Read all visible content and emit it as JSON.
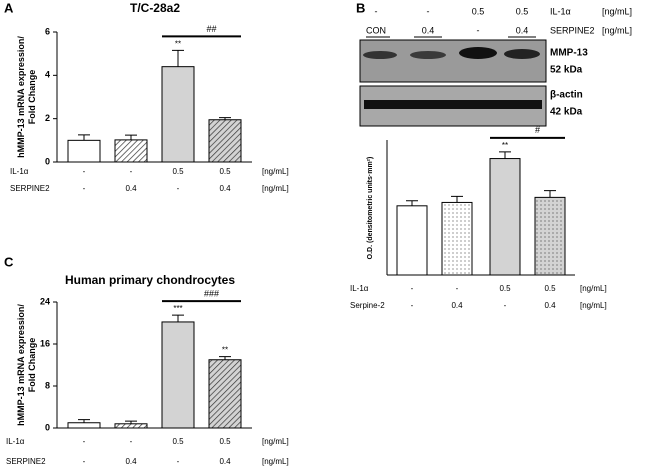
{
  "panel_labels": [
    "A",
    "B",
    "C"
  ],
  "blot": {
    "header": [
      {
        "name": "IL-1α",
        "levels": [
          "-",
          "-",
          "0.5",
          "0.5"
        ],
        "unit": "[ng/mL]"
      },
      {
        "name": "SERPINE2",
        "levels": [
          "CON",
          "0.4",
          "-",
          "0.4"
        ],
        "unit": "[ng/mL]"
      }
    ],
    "bands": [
      {
        "name": "MMP-13",
        "size": "52 kDa"
      },
      {
        "name": "β-actin",
        "size": "42 kDa"
      }
    ]
  },
  "chart_data": [
    {
      "type": "bar",
      "title": "T/C-28a2",
      "ylabel": [
        "hMMP-13 mRNA expression/",
        "Fold Change"
      ],
      "values": [
        1.0,
        1.02,
        4.4,
        1.95
      ],
      "errors": [
        0.25,
        0.22,
        0.75,
        0.1
      ],
      "colors": [
        "#ffffff",
        "#ffffff",
        "#d3d3d3",
        "#d3d3d3"
      ],
      "hatched": [
        false,
        true,
        false,
        true
      ],
      "stars": [
        null,
        null,
        "**",
        null
      ],
      "bracket": "##",
      "ylim": [
        0,
        6
      ],
      "yticks": [
        0,
        2,
        4,
        6
      ],
      "treatments": [
        {
          "name": "IL-1α",
          "levels": [
            "-",
            "-",
            "0.5",
            "0.5"
          ],
          "unit": "[ng/mL]"
        },
        {
          "name": "SERPINE2",
          "levels": [
            "-",
            "0.4",
            "-",
            "0.4"
          ],
          "unit": "[ng/mL]"
        }
      ]
    },
    {
      "type": "bar",
      "ylabel": [
        "O.D. (densitometric units·mm²)"
      ],
      "values": [
        20.5,
        21.5,
        34.5,
        23.0
      ],
      "errors": [
        1.5,
        1.8,
        2.0,
        2.0
      ],
      "colors": [
        "#ffffff",
        "#ffffff",
        "#d3d3d3",
        "#d3d3d3"
      ],
      "hatched": [
        false,
        true,
        false,
        true
      ],
      "stars": [
        null,
        null,
        "**",
        null
      ],
      "bracket": "#",
      "ylim": [
        0,
        40
      ],
      "treatments": [
        {
          "name": "IL-1α",
          "levels": [
            "-",
            "-",
            "0.5",
            "0.5"
          ],
          "unit": "[ng/mL]"
        },
        {
          "name": "Serpine-2",
          "levels": [
            "-",
            "0.4",
            "-",
            "0.4"
          ],
          "unit": "[ng/mL]"
        }
      ]
    },
    {
      "type": "bar",
      "title": "Human primary chondrocytes",
      "ylabel": [
        "hMMP-13 mRNA expression/",
        "Fold Change"
      ],
      "values": [
        1.0,
        0.8,
        20.2,
        13.0
      ],
      "errors": [
        0.6,
        0.5,
        1.3,
        0.6
      ],
      "colors": [
        "#ffffff",
        "#ffffff",
        "#d3d3d3",
        "#d3d3d3"
      ],
      "hatched": [
        false,
        true,
        false,
        true
      ],
      "stars": [
        null,
        null,
        "***",
        "**"
      ],
      "bracket": "###",
      "ylim": [
        0,
        24
      ],
      "yticks": [
        0,
        8,
        16,
        24
      ],
      "treatments": [
        {
          "name": "IL-1α",
          "levels": [
            "-",
            "-",
            "0.5",
            "0.5"
          ],
          "unit": "[ng/mL]"
        },
        {
          "name": "SERPINE2",
          "levels": [
            "-",
            "0.4",
            "-",
            "0.4"
          ],
          "unit": "[ng/mL]"
        }
      ]
    }
  ]
}
